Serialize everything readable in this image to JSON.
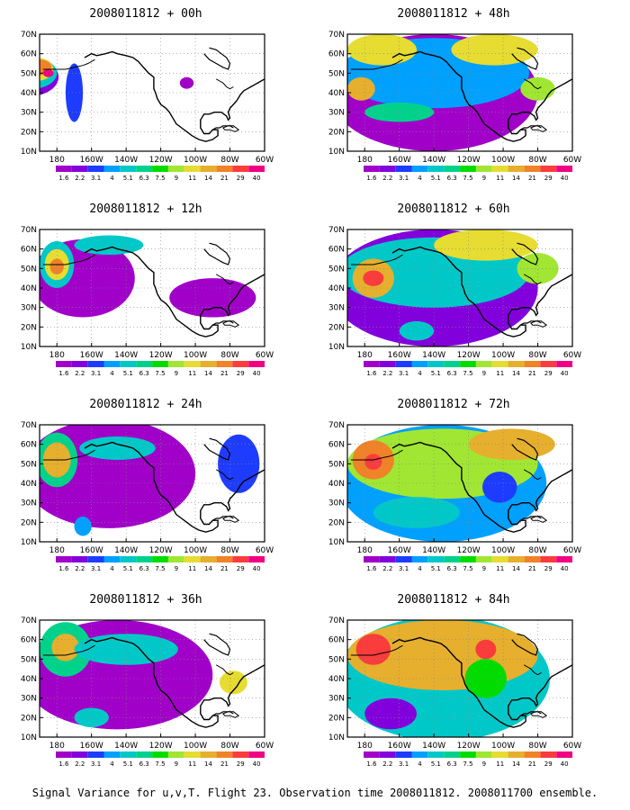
{
  "chart_data": {
    "type": "heatmap",
    "title": "Signal Variance for u,v,T. Flight 23. Observation time 2008011812. 2008011700 ensemble.",
    "lat_ticks": [
      "70N",
      "60N",
      "50N",
      "40N",
      "30N",
      "20N",
      "10N"
    ],
    "lon_ticks": [
      "180",
      "160W",
      "140W",
      "120W",
      "100W",
      "80W",
      "60W"
    ],
    "colorbar_labels": [
      "1.6",
      "2.2",
      "3.1",
      "4",
      "5.1",
      "6.3",
      "7.5",
      "9",
      "11",
      "14",
      "21",
      "29",
      "40"
    ],
    "colors": [
      "#a000c8",
      "#8200dc",
      "#1e3cff",
      "#00a0ff",
      "#00c8c8",
      "#00d28c",
      "#00dc00",
      "#a0e632",
      "#e6dc32",
      "#e6af2d",
      "#f08228",
      "#fa3c3c",
      "#f00082"
    ],
    "panels": [
      {
        "title": "2008011812 + 00h",
        "blobs": [
          {
            "lon": 163,
            "lat": 48,
            "rx": 18,
            "ry": 10,
            "level": 1
          },
          {
            "lon": 166,
            "lat": 50,
            "rx": 14,
            "ry": 8,
            "level": 4
          },
          {
            "lon": 168,
            "lat": 52,
            "rx": 10,
            "ry": 6,
            "level": 8
          },
          {
            "lon": 170,
            "lat": 53,
            "rx": 7,
            "ry": 4,
            "level": 10
          },
          {
            "lon": 175,
            "lat": 50,
            "rx": 3,
            "ry": 2,
            "level": 12
          },
          {
            "lon": 190,
            "lat": 40,
            "rx": 5,
            "ry": 15,
            "level": 2
          },
          {
            "lon": 255,
            "lat": 45,
            "rx": 4,
            "ry": 3,
            "level": 0
          }
        ]
      },
      {
        "title": "2008011812 + 48h",
        "blobs": [
          {
            "lon": 220,
            "lat": 40,
            "rx": 60,
            "ry": 30,
            "level": 0
          },
          {
            "lon": 220,
            "lat": 50,
            "rx": 55,
            "ry": 18,
            "level": 3
          },
          {
            "lon": 190,
            "lat": 62,
            "rx": 20,
            "ry": 8,
            "level": 8
          },
          {
            "lon": 255,
            "lat": 62,
            "rx": 25,
            "ry": 8,
            "level": 8
          },
          {
            "lon": 178,
            "lat": 42,
            "rx": 8,
            "ry": 6,
            "level": 9
          },
          {
            "lon": 280,
            "lat": 42,
            "rx": 10,
            "ry": 6,
            "level": 7
          },
          {
            "lon": 200,
            "lat": 30,
            "rx": 20,
            "ry": 5,
            "level": 5
          }
        ]
      },
      {
        "title": "2008011812 + 12h",
        "blobs": [
          {
            "lon": 195,
            "lat": 45,
            "rx": 30,
            "ry": 20,
            "level": 0
          },
          {
            "lon": 180,
            "lat": 52,
            "rx": 10,
            "ry": 12,
            "level": 4
          },
          {
            "lon": 180,
            "lat": 52,
            "rx": 7,
            "ry": 8,
            "level": 8
          },
          {
            "lon": 180,
            "lat": 51,
            "rx": 4,
            "ry": 4,
            "level": 10
          },
          {
            "lon": 210,
            "lat": 62,
            "rx": 20,
            "ry": 5,
            "level": 4
          },
          {
            "lon": 270,
            "lat": 35,
            "rx": 25,
            "ry": 10,
            "level": 0
          }
        ]
      },
      {
        "title": "2008011812 + 60h",
        "blobs": [
          {
            "lon": 220,
            "lat": 40,
            "rx": 60,
            "ry": 30,
            "level": 1
          },
          {
            "lon": 220,
            "lat": 48,
            "rx": 55,
            "ry": 18,
            "level": 4
          },
          {
            "lon": 185,
            "lat": 45,
            "rx": 12,
            "ry": 10,
            "level": 9
          },
          {
            "lon": 185,
            "lat": 45,
            "rx": 6,
            "ry": 4,
            "level": 11
          },
          {
            "lon": 250,
            "lat": 62,
            "rx": 30,
            "ry": 8,
            "level": 8
          },
          {
            "lon": 280,
            "lat": 50,
            "rx": 12,
            "ry": 8,
            "level": 7
          },
          {
            "lon": 210,
            "lat": 18,
            "rx": 10,
            "ry": 5,
            "level": 4
          }
        ]
      },
      {
        "title": "2008011812 + 24h",
        "blobs": [
          {
            "lon": 210,
            "lat": 45,
            "rx": 50,
            "ry": 28,
            "level": 0
          },
          {
            "lon": 180,
            "lat": 52,
            "rx": 12,
            "ry": 14,
            "level": 5
          },
          {
            "lon": 180,
            "lat": 52,
            "rx": 8,
            "ry": 9,
            "level": 9
          },
          {
            "lon": 215,
            "lat": 58,
            "rx": 22,
            "ry": 6,
            "level": 4
          },
          {
            "lon": 285,
            "lat": 50,
            "rx": 12,
            "ry": 15,
            "level": 2
          },
          {
            "lon": 195,
            "lat": 18,
            "rx": 5,
            "ry": 5,
            "level": 3
          }
        ]
      },
      {
        "title": "2008011812 + 72h",
        "blobs": [
          {
            "lon": 225,
            "lat": 40,
            "rx": 60,
            "ry": 30,
            "level": 3
          },
          {
            "lon": 225,
            "lat": 50,
            "rx": 55,
            "ry": 18,
            "level": 7
          },
          {
            "lon": 185,
            "lat": 52,
            "rx": 12,
            "ry": 10,
            "level": 10
          },
          {
            "lon": 185,
            "lat": 51,
            "rx": 5,
            "ry": 4,
            "level": 11
          },
          {
            "lon": 265,
            "lat": 60,
            "rx": 25,
            "ry": 8,
            "level": 9
          },
          {
            "lon": 210,
            "lat": 25,
            "rx": 25,
            "ry": 8,
            "level": 4
          },
          {
            "lon": 258,
            "lat": 38,
            "rx": 10,
            "ry": 8,
            "level": 2
          }
        ]
      },
      {
        "title": "2008011812 + 36h",
        "blobs": [
          {
            "lon": 215,
            "lat": 42,
            "rx": 55,
            "ry": 28,
            "level": 0
          },
          {
            "lon": 185,
            "lat": 55,
            "rx": 15,
            "ry": 14,
            "level": 5
          },
          {
            "lon": 185,
            "lat": 56,
            "rx": 8,
            "ry": 7,
            "level": 9
          },
          {
            "lon": 220,
            "lat": 55,
            "rx": 30,
            "ry": 8,
            "level": 4
          },
          {
            "lon": 282,
            "lat": 38,
            "rx": 8,
            "ry": 6,
            "level": 8
          },
          {
            "lon": 200,
            "lat": 20,
            "rx": 10,
            "ry": 5,
            "level": 4
          }
        ]
      },
      {
        "title": "2008011812 + 84h",
        "blobs": [
          {
            "lon": 225,
            "lat": 40,
            "rx": 62,
            "ry": 32,
            "level": 4
          },
          {
            "lon": 225,
            "lat": 52,
            "rx": 55,
            "ry": 18,
            "level": 9
          },
          {
            "lon": 185,
            "lat": 55,
            "rx": 10,
            "ry": 8,
            "level": 11
          },
          {
            "lon": 250,
            "lat": 55,
            "rx": 6,
            "ry": 5,
            "level": 11
          },
          {
            "lon": 250,
            "lat": 40,
            "rx": 12,
            "ry": 10,
            "level": 6
          },
          {
            "lon": 195,
            "lat": 22,
            "rx": 15,
            "ry": 8,
            "level": 1
          }
        ]
      }
    ]
  }
}
